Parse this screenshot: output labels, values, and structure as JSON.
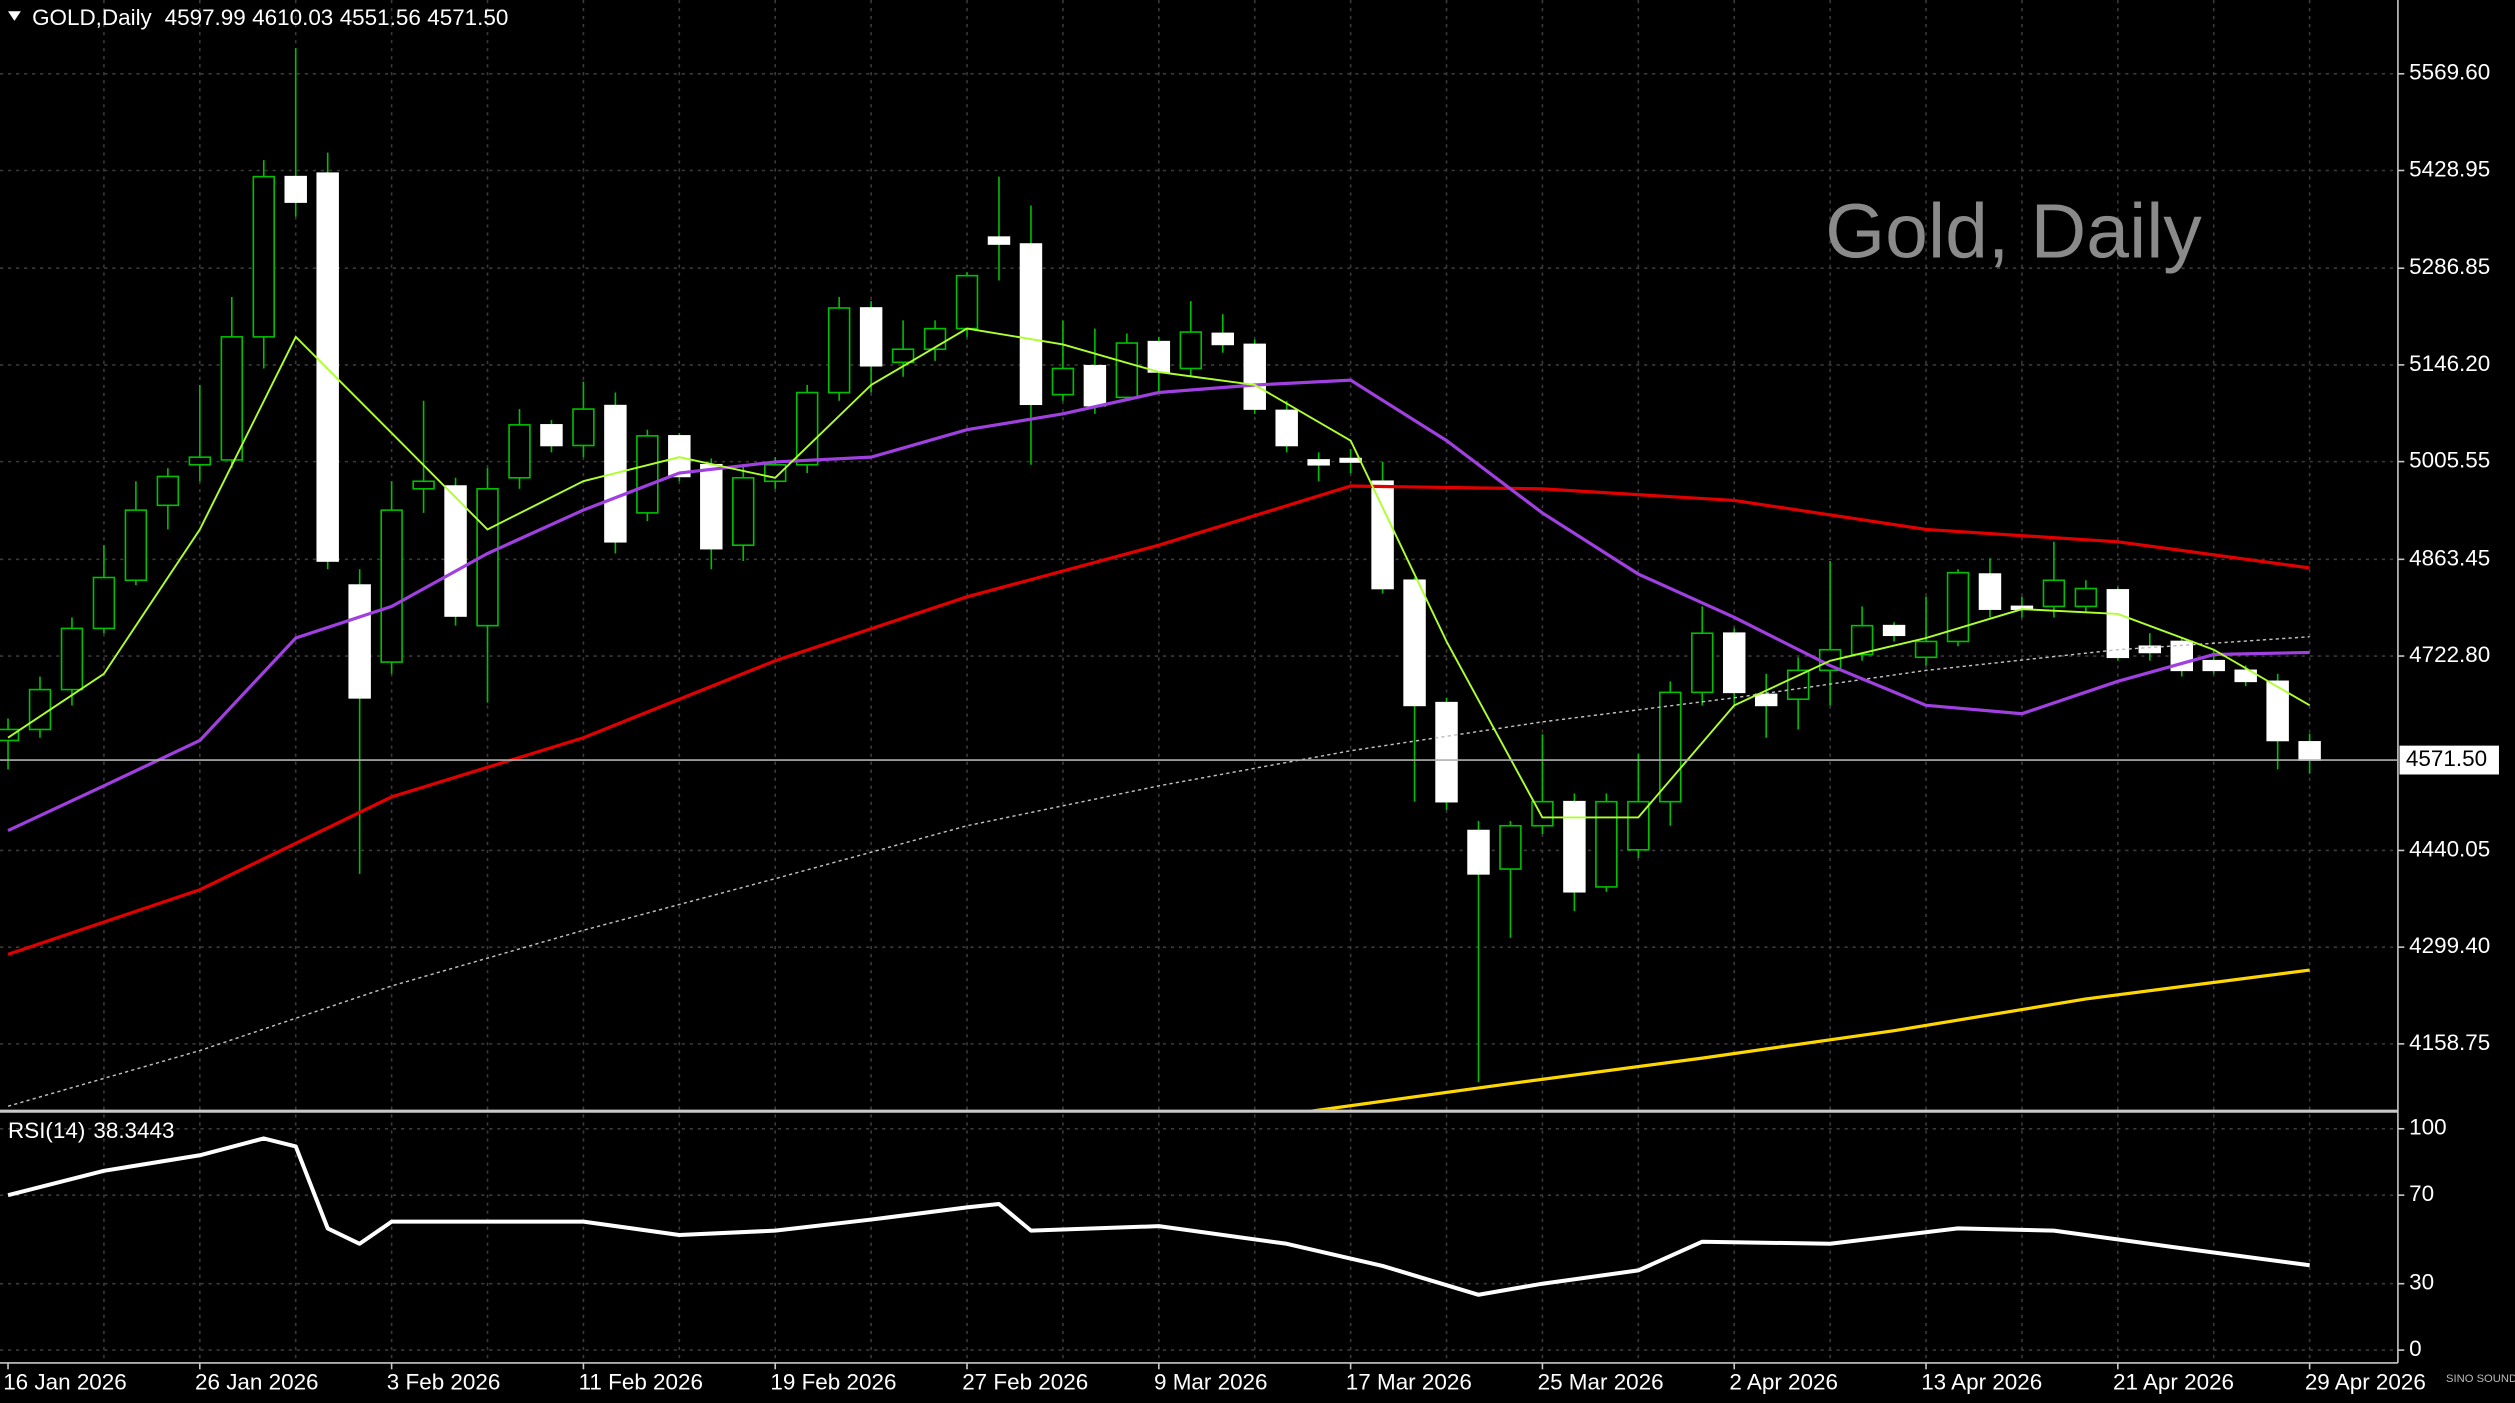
{
  "logo": "SINO SOUND",
  "chart_data": [
    {
      "type": "candlestick",
      "title": "GOLD,Daily",
      "ohlc_labels": [
        "4597.99",
        "4610.03",
        "4551.56",
        "4571.50"
      ],
      "watermark": "Gold, Daily",
      "categories": [
        "16 Jan 2026",
        null,
        null,
        null,
        null,
        null,
        "26 Jan 2026",
        null,
        null,
        null,
        null,
        null,
        "3 Feb 2026",
        null,
        null,
        null,
        null,
        null,
        "11 Feb 2026",
        null,
        null,
        null,
        null,
        null,
        "19 Feb 2026",
        null,
        null,
        null,
        null,
        null,
        "27 Feb 2026",
        null,
        null,
        null,
        null,
        null,
        "9 Mar 2026",
        null,
        null,
        null,
        null,
        null,
        "17 Mar 2026",
        null,
        null,
        null,
        null,
        null,
        "25 Mar 2026",
        null,
        null,
        null,
        null,
        null,
        "2 Apr 2026",
        null,
        null,
        null,
        null,
        null,
        "13 Apr 2026",
        null,
        null,
        null,
        null,
        null,
        "21 Apr 2026",
        null,
        null,
        null,
        null,
        null,
        "29 Apr 2026"
      ],
      "open": [
        4600,
        4616,
        4674,
        4763,
        4833,
        4942,
        5001,
        5008,
        5187,
        5420,
        5425,
        4826,
        4714,
        4966,
        4970,
        4767,
        4982,
        5059,
        5029,
        5087,
        4931,
        5043,
        5001,
        4884,
        4977,
        5001,
        5106,
        5229,
        5150,
        5169,
        5199,
        5332,
        5322,
        5103,
        5145,
        5099,
        5180,
        5141,
        5192,
        5176,
        5080,
        5008,
        5010,
        4977,
        4833,
        4655,
        4469,
        4413,
        4476,
        4511,
        4387,
        4441,
        4511,
        4670,
        4756,
        4667,
        4660,
        4702,
        4725,
        4767,
        4721,
        4744,
        4842,
        4795,
        4795,
        4795,
        4819,
        4737,
        4744,
        4716,
        4702,
        4686,
        4597.99
      ],
      "high": [
        4632,
        4693,
        4779,
        4884,
        4977,
        4996,
        5117,
        5245,
        5444,
        5607,
        5455,
        4849,
        4977,
        5094,
        4982,
        4996,
        5082,
        5066,
        5122,
        5106,
        5052,
        5047,
        5010,
        5001,
        5012,
        5117,
        5245,
        5239,
        5211,
        5211,
        5281,
        5420,
        5378,
        5211,
        5199,
        5192,
        5187,
        5239,
        5220,
        5183,
        5094,
        5019,
        5024,
        5005,
        4837,
        4662,
        4483,
        4483,
        4609,
        4523,
        4523,
        4581,
        4686,
        4795,
        4763,
        4697,
        4721,
        4861,
        4795,
        4772,
        4809,
        4849,
        4865,
        4809,
        4889,
        4833,
        4823,
        4756,
        4749,
        4732,
        4709,
        4697,
        4610.03
      ],
      "low": [
        4558,
        4604,
        4651,
        4756,
        4826,
        4907,
        4977,
        4996,
        5141,
        5362,
        4849,
        4406,
        4697,
        4931,
        4767,
        4655,
        4966,
        5019,
        5012,
        4872,
        4919,
        4977,
        4849,
        4861,
        4966,
        4989,
        5094,
        5106,
        5129,
        5152,
        5187,
        5269,
        5001,
        5094,
        5075,
        5094,
        5106,
        5129,
        5164,
        5075,
        5019,
        4977,
        4989,
        4814,
        4511,
        4499,
        4103,
        4313,
        4464,
        4352,
        4380,
        4429,
        4476,
        4651,
        4651,
        4604,
        4616,
        4651,
        4716,
        4744,
        4709,
        4737,
        4779,
        4779,
        4779,
        4786,
        4716,
        4716,
        4693,
        4697,
        4679,
        4558,
        4551.56
      ],
      "close": [
        4616,
        4674,
        4763,
        4837,
        4935,
        4984,
        5012,
        5187,
        5420,
        5383,
        4861,
        4662,
        4935,
        4977,
        4781,
        4966,
        5059,
        5029,
        5082,
        4889,
        5043,
        4984,
        4879,
        4982,
        5001,
        5106,
        5229,
        5145,
        5169,
        5199,
        5276,
        5322,
        5089,
        5141,
        5087,
        5178,
        5136,
        5194,
        5176,
        5082,
        5029,
        5001,
        5005,
        4821,
        4651,
        4511,
        4406,
        4476,
        4511,
        4380,
        4511,
        4511,
        4670,
        4756,
        4670,
        4651,
        4702,
        4732,
        4767,
        4753,
        4744,
        4844,
        4791,
        4791,
        4833,
        4821,
        4721,
        4728,
        4702,
        4702,
        4686,
        4600,
        4571.5
      ],
      "bull_color": "#00c000",
      "bear_color": "#ffffff",
      "lines": [
        {
          "color": "#c0c0c0",
          "dashed": true,
          "x": [
            0,
            6,
            12,
            18,
            24,
            30,
            36,
            42,
            48,
            54,
            60,
            66,
            72
          ],
          "values": [
            4068,
            4149,
            4243,
            4324,
            4399,
            4476,
            4534,
            4585,
            4627,
            4662,
            4702,
            4732,
            4751
          ]
        },
        {
          "color": "#e00000",
          "dashed": false,
          "x": [
            0,
            6,
            12,
            18,
            24,
            30,
            36,
            42,
            48,
            54,
            60,
            66,
            72
          ],
          "values": [
            4289,
            4383,
            4518,
            4604,
            4716,
            4809,
            4884,
            4970,
            4966,
            4949,
            4907,
            4889,
            4851
          ]
        },
        {
          "color": "#ffd700",
          "dashed": false,
          "x": [
            40,
            47,
            53,
            59,
            65,
            72
          ],
          "values": [
            4056,
            4101,
            4138,
            4178,
            4224,
            4266
          ]
        },
        {
          "color": "#a040e0",
          "dashed": false,
          "x": [
            0,
            3,
            6,
            9,
            12,
            15,
            18,
            21,
            24,
            27,
            30,
            33,
            36,
            39,
            42,
            45,
            48,
            51,
            54,
            57,
            60,
            63,
            66,
            69,
            72
          ],
          "values": [
            4469,
            4534,
            4600,
            4749,
            4795,
            4872,
            4935,
            4989,
            5005,
            5012,
            5052,
            5075,
            5106,
            5117,
            5124,
            5036,
            4931,
            4842,
            4779,
            4709,
            4651,
            4639,
            4686,
            4725,
            4728
          ]
        },
        {
          "color": "#adff2f",
          "dashed": false,
          "x": [
            0,
            3,
            6,
            9,
            12,
            15,
            18,
            21,
            24,
            27,
            30,
            33,
            36,
            39,
            42,
            45,
            48,
            51,
            54,
            57,
            60,
            63,
            66,
            69,
            72
          ],
          "values": [
            4604,
            4697,
            4907,
            5187,
            5047,
            4907,
            4977,
            5012,
            4982,
            5117,
            5199,
            5176,
            5136,
            5117,
            5036,
            4744,
            4488,
            4488,
            4651,
            4716,
            4749,
            4791,
            4784,
            4732,
            4651
          ]
        }
      ],
      "ylim": [
        4063.2,
        5676.9
      ],
      "yticks": [
        {
          "value": 5569.6,
          "label": "5569.60"
        },
        5428.95,
        5286.85,
        {
          "value": 5146.2,
          "label": "5146.20"
        },
        5005.55,
        4863.45,
        {
          "value": 4722.8,
          "label": "4722.80"
        },
        4440.05,
        {
          "value": 4299.4,
          "label": "4299.40"
        },
        4158.75
      ],
      "grid": true
    },
    {
      "type": "line",
      "title": "RSI(14)",
      "series": [
        {
          "color": "#ffffff",
          "x": [
            0,
            3,
            6,
            8,
            9,
            10,
            11,
            12,
            15,
            18,
            21,
            24,
            27,
            30,
            31,
            32,
            36,
            40,
            43,
            46,
            48,
            51,
            53,
            57,
            61,
            64,
            68,
            72
          ],
          "values": [
            70,
            81,
            88,
            95.6,
            92,
            55,
            48,
            58,
            58,
            58,
            52,
            54,
            59,
            64.5,
            66,
            54,
            56,
            48,
            38,
            25,
            30,
            36,
            49,
            48,
            55,
            54,
            46,
            38.3443
          ]
        }
      ],
      "ylim": [
        -5.8,
        106.5
      ],
      "yticks": [
        0,
        30,
        70,
        100
      ],
      "grid": true
    }
  ]
}
